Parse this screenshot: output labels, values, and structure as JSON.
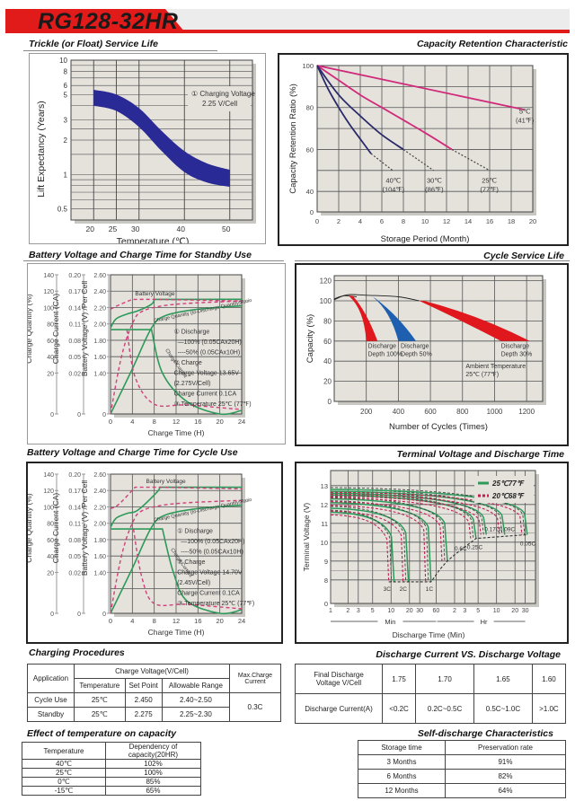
{
  "header": {
    "title": "RG128-32HR",
    "accent_color": "#e11a1a"
  },
  "sections": {
    "trickle": "Trickle (or Float) Service Life",
    "retention": "Capacity Retention Characteristic",
    "standby": "Battery Voltage and Charge Time for Standby Use",
    "cycle_life": "Cycle Service Life",
    "cycle_use": "Battery Voltage and Charge Time for Cycle Use",
    "terminal": "Terminal Voltage and Discharge Time",
    "charging": "Charging Procedures",
    "discharge_cv": "Discharge Current VS. Discharge Voltage",
    "temp_effect": "Effect of temperature on capacity",
    "self_discharge": "Self-discharge Characteristics"
  },
  "chart_data": [
    {
      "id": "trickle",
      "type": "area",
      "title": "Trickle (or Float) Service Life",
      "xlabel": "Temperature (℃)",
      "ylabel": "Lift Expectancy (Years)",
      "x_ticks": [
        "20",
        "25",
        "30",
        "40",
        "50"
      ],
      "y_ticks": [
        "10",
        "8",
        "6",
        "5",
        "3",
        "2",
        "1",
        "0.5"
      ],
      "y_scale": "log",
      "xlim": [
        15,
        55
      ],
      "ylim": [
        0.4,
        10
      ],
      "annotation": [
        "① Charging Voltage",
        "2.25 V/Cell"
      ],
      "band_upper": {
        "x": [
          20,
          25,
          30,
          35,
          40,
          45,
          50
        ],
        "y": [
          5.5,
          5.0,
          3.8,
          2.4,
          1.6,
          1.25,
          1.1
        ]
      },
      "band_lower": {
        "x": [
          20,
          25,
          30,
          35,
          40,
          45,
          50
        ],
        "y": [
          4.0,
          3.6,
          2.6,
          1.6,
          1.05,
          0.85,
          0.78
        ]
      },
      "band_color": "#2a2a96"
    },
    {
      "id": "retention",
      "type": "line",
      "title": "Capacity Retention Characteristic",
      "xlabel": "Storage Period (Month)",
      "ylabel": "Capacity Retention Ratio (%)",
      "x_ticks": [
        "0",
        "2",
        "4",
        "6",
        "8",
        "10",
        "12",
        "14",
        "16",
        "18",
        "20"
      ],
      "y_ticks": [
        "100",
        "80",
        "60",
        "40",
        "0"
      ],
      "xlim": [
        0,
        20
      ],
      "ylim": [
        30,
        100
      ],
      "series": [
        {
          "name": "5℃",
          "sub": "(41℉)",
          "color": "#d02a7a",
          "x": [
            0,
            19.2
          ],
          "y": [
            100,
            79
          ],
          "dash_x": [],
          "dash_y": []
        },
        {
          "name": "25℃",
          "sub": "(77℉)",
          "color": "#d02a7a",
          "x": [
            0,
            2,
            4,
            6,
            8,
            10,
            12.5
          ],
          "y": [
            100,
            93,
            86,
            80,
            74,
            68,
            60
          ],
          "dash_x": [
            12.5,
            16
          ],
          "dash_y": [
            60,
            50
          ]
        },
        {
          "name": "30℃",
          "sub": "(86℉)",
          "color": "#2a2a6a",
          "x": [
            0,
            2,
            4,
            6,
            8
          ],
          "y": [
            100,
            86,
            76,
            67,
            60
          ],
          "dash_x": [
            8,
            10.8
          ],
          "dash_y": [
            60,
            50
          ]
        },
        {
          "name": "40℃",
          "sub": "(104℉)",
          "color": "#2a2a6a",
          "x": [
            0,
            1,
            2,
            3,
            4,
            5
          ],
          "y": [
            100,
            89,
            80,
            72,
            65,
            58
          ],
          "dash_x": [
            5,
            7
          ],
          "dash_y": [
            58,
            50
          ]
        }
      ]
    },
    {
      "id": "standby",
      "type": "line",
      "title": "Battery Voltage and Charge Time for Standby Use",
      "xlabel": "Charge Time (H)",
      "axes": [
        {
          "label": "Charge Quantity (%)",
          "ticks": [
            "140",
            "120",
            "100",
            "80",
            "60",
            "40",
            "20",
            "0"
          ]
        },
        {
          "label": "Charge Current (CA)",
          "ticks": [
            "0.20",
            "0.17",
            "0.14",
            "0.11",
            "0.08",
            "0.05",
            "0.02",
            "0"
          ]
        },
        {
          "label": "Battery Voltage (V) /Per Cell",
          "ticks": [
            "2.60",
            "2.40",
            "2.20",
            "2.00",
            "1.80",
            "1.60",
            "1.40",
            "0"
          ]
        }
      ],
      "x_ticks": [
        "0",
        "4",
        "8",
        "12",
        "16",
        "20",
        "24"
      ],
      "xlim": [
        0,
        24
      ],
      "curve_labels": [
        "Battery Voltage",
        "Charge Quantity (to-Discharge Quantity)Ratio",
        "Charge Current"
      ],
      "notes": [
        "① Discharge",
        "—100% (0.05CAx20H)",
        "----50% (0.05CAx10H)",
        "② Charge",
        "Charge Voltage 13.65V",
        "(2.275V/Cell)",
        "Charge Current 0.1CA",
        "③ Temperature 25℃ (77℉)"
      ]
    },
    {
      "id": "cycle_life",
      "type": "area",
      "title": "Cycle Service Life",
      "xlabel": "Number of Cycles (Times)",
      "ylabel": "Capacity (%)",
      "x_ticks": [
        "200",
        "400",
        "600",
        "800",
        "1000",
        "1200"
      ],
      "y_ticks": [
        "120",
        "100",
        "80",
        "60",
        "40",
        "20",
        "0"
      ],
      "xlim": [
        0,
        1300
      ],
      "ylim": [
        0,
        125
      ],
      "series": [
        {
          "name": "Discharge Depth 100%",
          "color": "#e0181e",
          "end_range": [
            200,
            270
          ]
        },
        {
          "name": "Discharge Depth 50%",
          "color": "#1f5fb0",
          "end_range": [
            400,
            510
          ]
        },
        {
          "name": "Discharge Depth 30%",
          "color": "#e0181e",
          "end_range": [
            1040,
            1220
          ]
        }
      ],
      "annotation": [
        "Ambient Temperature",
        "25℃ (77℉)"
      ]
    },
    {
      "id": "cycle_use",
      "type": "line",
      "title": "Battery Voltage and Charge Time for Cycle Use",
      "xlabel": "Charge Time (H)",
      "axes": [
        {
          "label": "Charge Quantity (%)",
          "ticks": [
            "140",
            "120",
            "100",
            "80",
            "60",
            "40",
            "20",
            "0"
          ]
        },
        {
          "label": "Charge Current (CA)",
          "ticks": [
            "0.20",
            "0.17",
            "0.14",
            "0.11",
            "0.08",
            "0.05",
            "0.02",
            "0"
          ]
        },
        {
          "label": "Battery Voltage (V) /Per Cell",
          "ticks": [
            "2.60",
            "2.40",
            "2.20",
            "2.00",
            "1.80",
            "1.60",
            "1.40",
            "0"
          ]
        }
      ],
      "x_ticks": [
        "0",
        "4",
        "8",
        "12",
        "16",
        "20",
        "24"
      ],
      "xlim": [
        0,
        24
      ],
      "curve_labels": [
        "Battery Voltage",
        "Charge Quantity (to-Discharge Quantity)Ratio",
        "Charge Current"
      ],
      "notes": [
        "① Discharge",
        "—100% (0.05CAx20H)",
        "----50% (0.05CAx10H)",
        "② Charge",
        "Charge Voltage 14.70V",
        "(2.45V/Cell)",
        "Charge Current 0.1CA",
        "③ Temperature 25℃ (77℉)"
      ]
    },
    {
      "id": "terminal",
      "type": "line",
      "title": "Terminal Voltage and Discharge Time",
      "xlabel": "Discharge Time (Min)",
      "ylabel": "Terminal Voltage (V)",
      "x_ticks": [
        "1",
        "2",
        "3",
        "5",
        "10",
        "20",
        "30",
        "60",
        "2",
        "3",
        "5",
        "10",
        "20",
        "30"
      ],
      "x_units": [
        "Min",
        "Hr"
      ],
      "y_ticks": [
        "13",
        "12",
        "11",
        "10",
        "9",
        "8",
        "0"
      ],
      "legend": [
        {
          "name": "25℃77℉",
          "color": "#2e9a5a",
          "style": "solid"
        },
        {
          "name": "20℃68℉",
          "color": "#c02050",
          "style": "dashed"
        }
      ],
      "legend_position": "top-right",
      "series": [
        {
          "name": "3C",
          "start_v": 11.6,
          "end_v": 7.9
        },
        {
          "name": "2C",
          "start_v": 11.8,
          "end_v": 7.9
        },
        {
          "name": "1C",
          "start_v": 12.1,
          "end_v": 7.9
        },
        {
          "name": "0.6C",
          "start_v": 12.3,
          "end_v": 9.0
        },
        {
          "name": "0.25C",
          "start_v": 12.5,
          "end_v": 10.2
        },
        {
          "name": "0.17C",
          "start_v": 12.6,
          "end_v": 10.4
        },
        {
          "name": "0.09C",
          "start_v": 12.7,
          "end_v": 10.4
        },
        {
          "name": "0.05C",
          "start_v": 12.8,
          "end_v": 10.4
        }
      ]
    }
  ],
  "charging_table": {
    "headers": {
      "application": "Application",
      "charge_voltage": "Charge Voltage(V/Cell)",
      "temperature": "Temperature",
      "set_point": "Set Point",
      "allowable": "Allowable Range",
      "max_current": "Max.Charge Current"
    },
    "rows": [
      {
        "application": "Cycle Use",
        "temperature": "25℃",
        "set_point": "2.450",
        "allowable": "2.40~2.50"
      },
      {
        "application": "Standby",
        "temperature": "25℃",
        "set_point": "2.275",
        "allowable": "2.25~2.30"
      }
    ],
    "max_current": "0.3C"
  },
  "discharge_table": {
    "row1_label": "Final Discharge Voltage V/Cell",
    "row1": [
      "1.75",
      "1.70",
      "1.65",
      "1.60"
    ],
    "row2_label": "Discharge Current(A)",
    "row2": [
      "<0.2C",
      "0.2C~0.5C",
      "0.5C~1.0C",
      ">1.0C"
    ]
  },
  "temp_table": {
    "headers": [
      "Temperature",
      "Dependency of capacity(20HR)"
    ],
    "rows": [
      [
        "40℃",
        "102%"
      ],
      [
        "25℃",
        "100%"
      ],
      [
        "0℃",
        "85%"
      ],
      [
        "-15℃",
        "65%"
      ]
    ]
  },
  "self_table": {
    "headers": [
      "Storage time",
      "Preservation rate"
    ],
    "rows": [
      [
        "3 Months",
        "91%"
      ],
      [
        "6 Months",
        "82%"
      ],
      [
        "12 Months",
        "64%"
      ]
    ]
  }
}
